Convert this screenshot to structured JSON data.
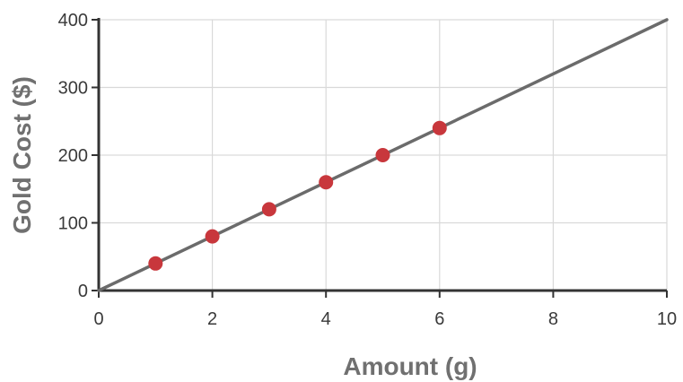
{
  "chart_data": {
    "type": "scatter",
    "title": "",
    "xlabel": "Amount (g)",
    "ylabel": "Gold Cost ($)",
    "xlim": [
      0,
      10
    ],
    "ylim": [
      0,
      400
    ],
    "x_ticks": [
      0,
      2,
      4,
      6,
      8,
      10
    ],
    "y_ticks": [
      0,
      100,
      200,
      300,
      400
    ],
    "x_tick_labels": [
      "0",
      "2",
      "4",
      "6",
      "8",
      "10"
    ],
    "y_tick_labels": [
      "0",
      "100",
      "200",
      "300",
      "400"
    ],
    "grid": true,
    "points": {
      "x": [
        1,
        2,
        3,
        4,
        5,
        6
      ],
      "y": [
        40,
        80,
        120,
        160,
        200,
        240
      ]
    },
    "trend_line": {
      "x": [
        0,
        10
      ],
      "y": [
        0,
        400
      ]
    },
    "colors": {
      "points": "#c8373c",
      "line": "#6b6b6b",
      "grid": "#d9d9d9",
      "axis": "#333333"
    }
  }
}
